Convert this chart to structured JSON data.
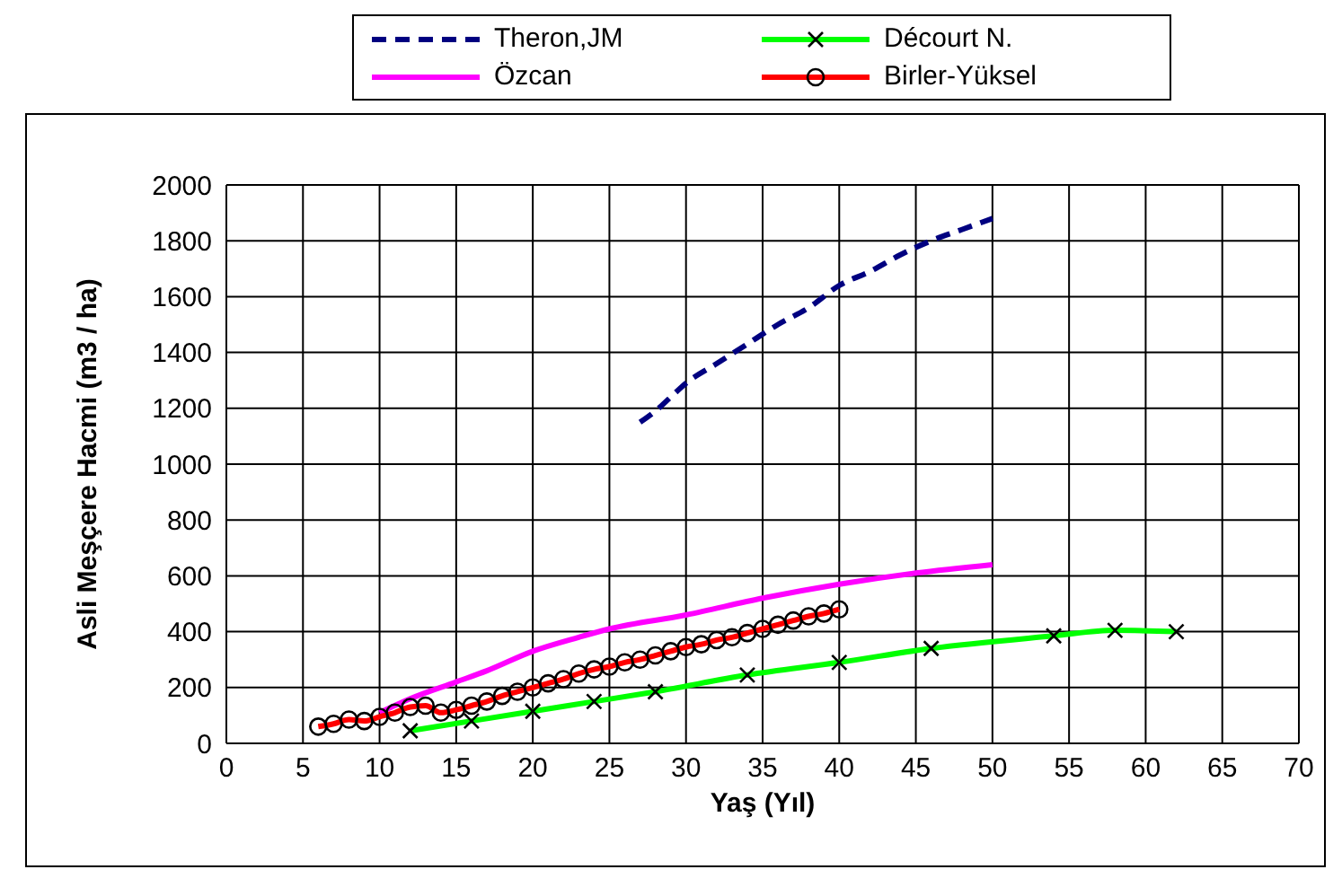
{
  "chart_data": {
    "type": "line",
    "xlabel": "Yaş (Yıl)",
    "ylabel": "Asli Meşçere Hacmi (m3 / ha)",
    "xlim": [
      0,
      70
    ],
    "xticks": [
      0,
      5,
      10,
      15,
      20,
      25,
      30,
      35,
      40,
      45,
      50,
      55,
      60,
      65,
      70
    ],
    "ylim": [
      0,
      2000
    ],
    "yticks": [
      0,
      200,
      400,
      600,
      800,
      1000,
      1200,
      1400,
      1600,
      1800,
      2000
    ],
    "grid": true,
    "legend": "top",
    "series": [
      {
        "name": "Theron,JM",
        "color": "#000080",
        "line_style": "dashed",
        "marker": "none",
        "x": [
          27,
          28,
          29,
          30,
          32,
          34,
          36,
          38,
          40,
          42,
          44,
          46,
          48,
          50
        ],
        "values": [
          1150,
          1190,
          1240,
          1290,
          1360,
          1430,
          1500,
          1560,
          1640,
          1690,
          1750,
          1800,
          1840,
          1880
        ]
      },
      {
        "name": "Décourt N.",
        "color": "#00ff00",
        "line_style": "solid",
        "marker": "cross",
        "x": [
          12,
          16,
          20,
          24,
          28,
          34,
          40,
          46,
          54,
          58,
          62
        ],
        "values": [
          45,
          80,
          115,
          150,
          185,
          245,
          290,
          340,
          385,
          405,
          400
        ]
      },
      {
        "name": "Özcan",
        "color": "#ff00ff",
        "line_style": "solid",
        "marker": "none",
        "x": [
          10,
          12,
          15,
          17,
          20,
          23,
          25,
          30,
          35,
          40,
          45,
          50
        ],
        "values": [
          110,
          160,
          220,
          260,
          330,
          380,
          410,
          460,
          520,
          570,
          610,
          640
        ]
      },
      {
        "name": "Birler-Yüksel",
        "color": "#ff0000",
        "line_style": "solid",
        "marker": "circle",
        "x": [
          6,
          7,
          8,
          9,
          10,
          11,
          12,
          13,
          14,
          15,
          16,
          17,
          18,
          19,
          20,
          21,
          22,
          23,
          24,
          25,
          26,
          27,
          28,
          29,
          30,
          31,
          32,
          33,
          34,
          35,
          36,
          37,
          38,
          39,
          40
        ],
        "values": [
          60,
          70,
          85,
          80,
          95,
          110,
          130,
          135,
          110,
          120,
          135,
          150,
          170,
          185,
          200,
          215,
          230,
          250,
          265,
          275,
          290,
          300,
          315,
          330,
          345,
          355,
          370,
          380,
          395,
          410,
          425,
          440,
          455,
          465,
          480
        ]
      }
    ]
  }
}
